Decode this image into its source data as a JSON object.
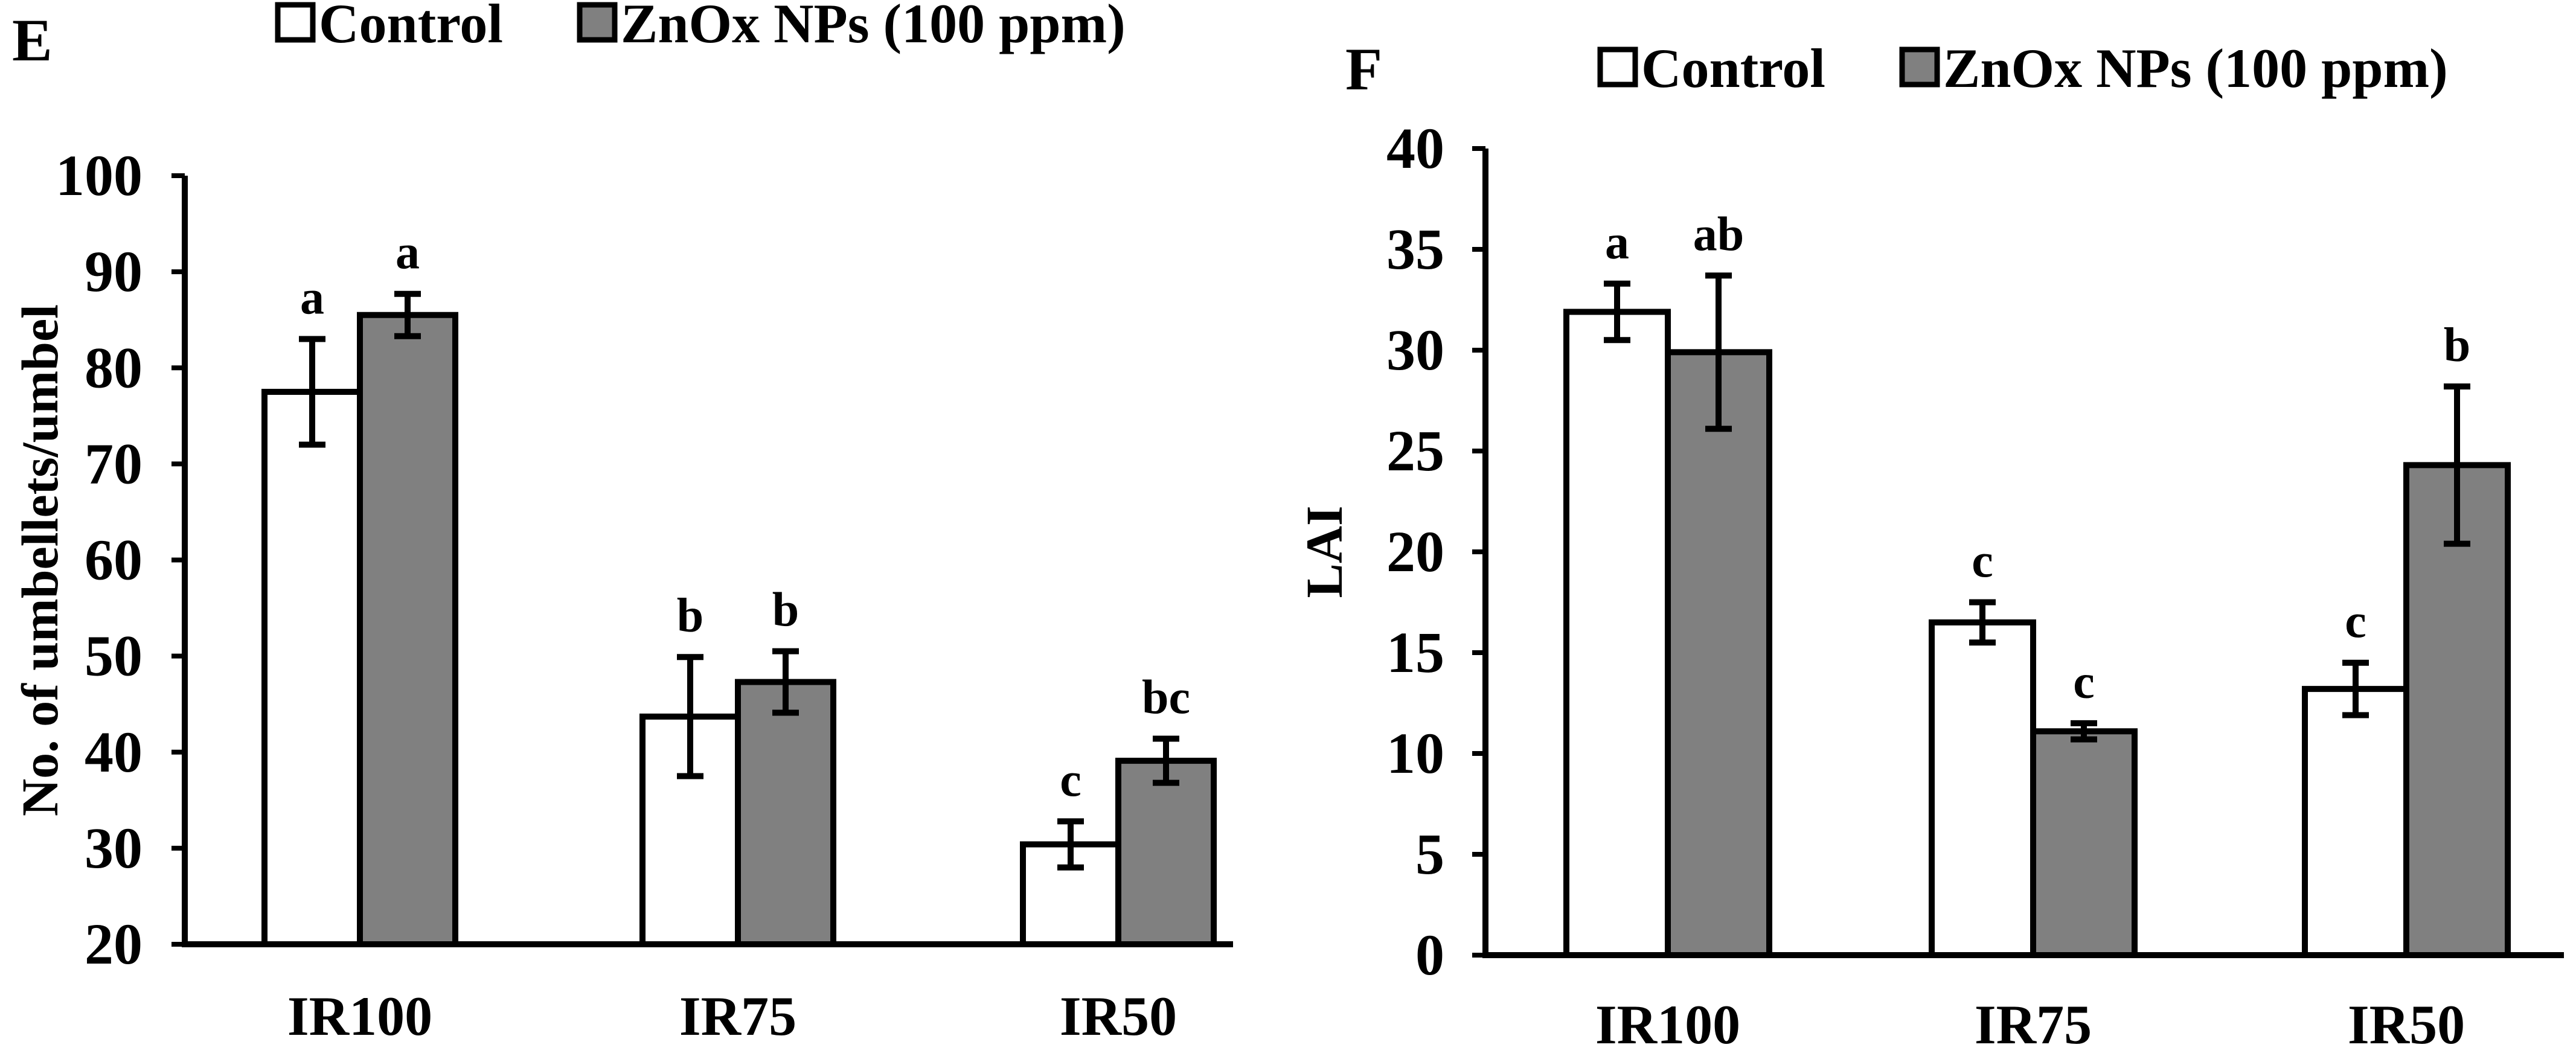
{
  "figure": {
    "colors": {
      "control": "#ffffff",
      "treated": "#808080",
      "stroke": "#000000"
    }
  },
  "chart_data": [
    {
      "type": "bar",
      "panel": "E",
      "legend": [
        "Control",
        "ZnOx NPs (100 ppm)"
      ],
      "legend_position": "top",
      "categories": [
        "IR100",
        "IR75",
        "IR50"
      ],
      "ylabel": "No. of umbellets/umbel",
      "xlabel": "",
      "ylim": [
        20,
        100
      ],
      "yticks": [
        20,
        30,
        40,
        50,
        60,
        70,
        80,
        90,
        100
      ],
      "series": [
        {
          "name": "Control",
          "values": [
            77.5,
            43.7,
            30.4
          ],
          "errors": [
            5.5,
            6.2,
            2.4
          ],
          "letters": [
            "a",
            "b",
            "c"
          ]
        },
        {
          "name": "ZnOx NPs (100 ppm)",
          "values": [
            85.5,
            47.3,
            39.1
          ],
          "errors": [
            2.2,
            3.2,
            2.3
          ],
          "letters": [
            "a",
            "b",
            "bc"
          ]
        }
      ]
    },
    {
      "type": "bar",
      "panel": "F",
      "legend": [
        "Control",
        "ZnOx NPs (100 ppm)"
      ],
      "legend_position": "top",
      "categories": [
        "IR100",
        "IR75",
        "IR50"
      ],
      "ylabel": "LAI",
      "xlabel": "",
      "ylim": [
        0,
        40
      ],
      "yticks": [
        0,
        5,
        10,
        15,
        20,
        25,
        30,
        35,
        40
      ],
      "series": [
        {
          "name": "Control",
          "values": [
            31.9,
            16.5,
            13.2
          ],
          "errors": [
            1.4,
            1.0,
            1.3
          ],
          "letters": [
            "a",
            "c",
            "c"
          ]
        },
        {
          "name": "ZnOx NPs (100 ppm)",
          "values": [
            29.9,
            11.1,
            24.3
          ],
          "errors": [
            3.8,
            0.4,
            3.9
          ],
          "letters": [
            "ab",
            "c",
            "b"
          ]
        }
      ]
    }
  ]
}
